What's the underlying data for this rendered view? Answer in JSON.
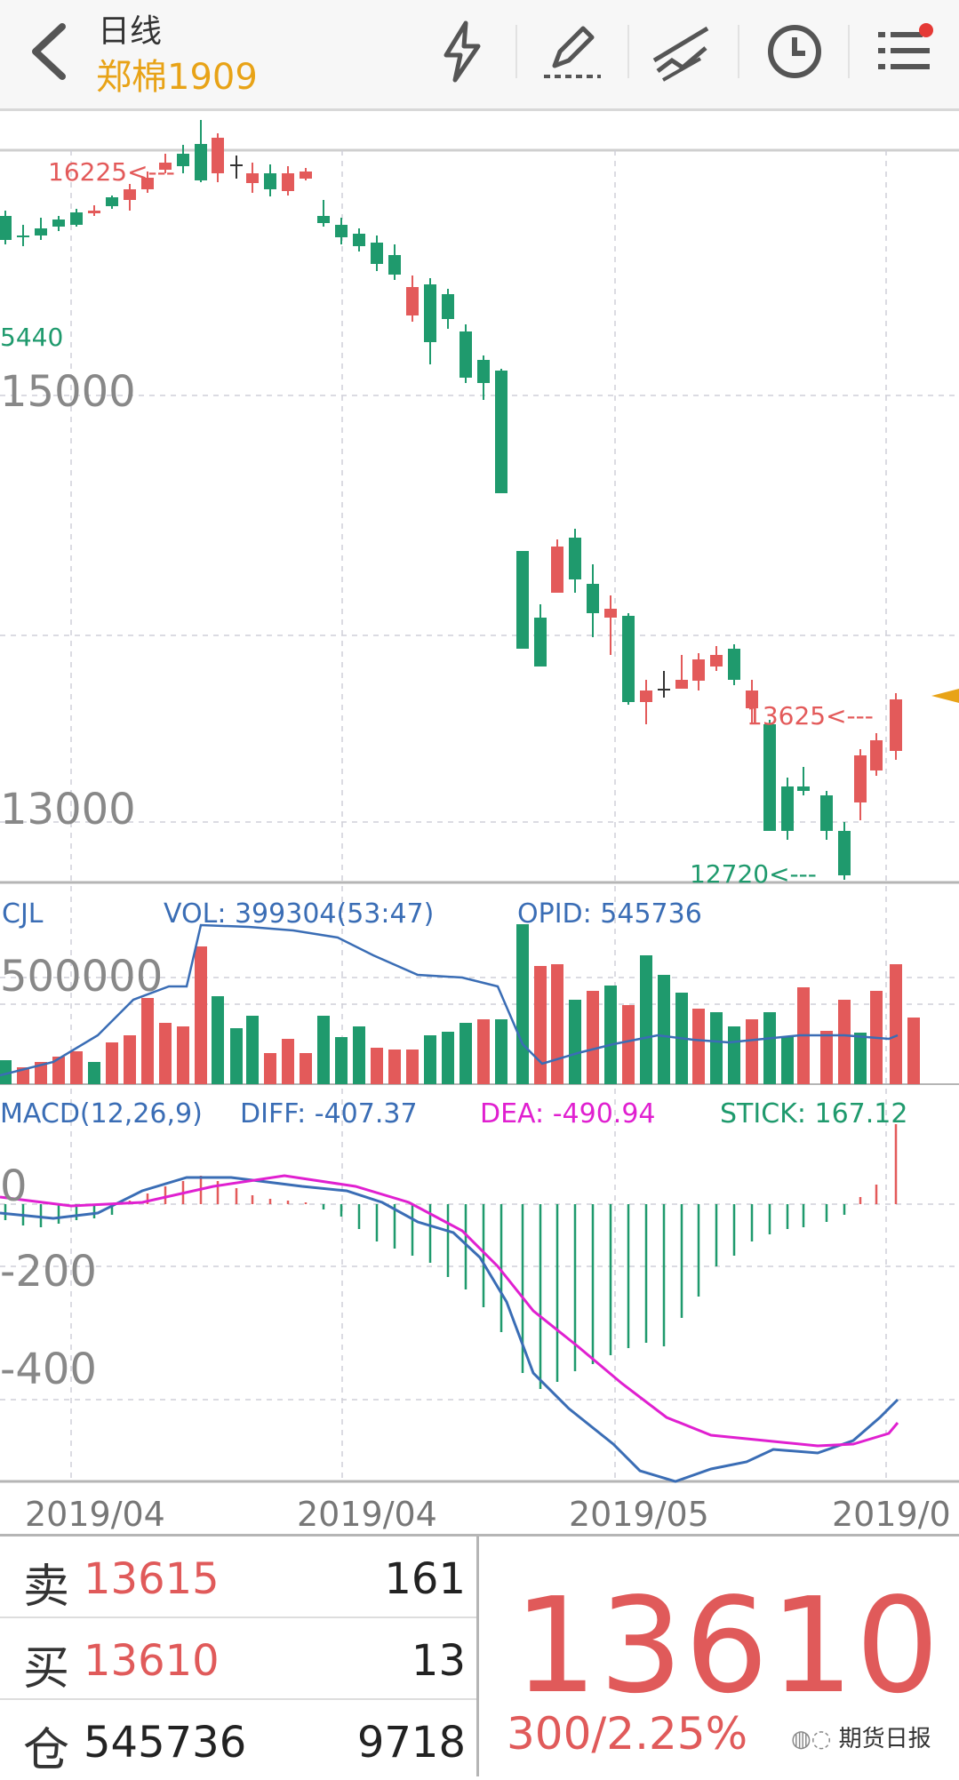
{
  "header": {
    "title": "日线",
    "symbol": "郑棉1909"
  },
  "chart_labels": {
    "high_marker": "16225<---",
    "low_left_marker": "5440",
    "y_15000": "15000",
    "y_13000": "13000",
    "recent_high_marker": "13625<---",
    "recent_low_marker": "12720<---",
    "cjl": "CJL",
    "vol": "VOL: 399304(53:47)",
    "opid": "OPID: 545736",
    "vol_axis": "500000",
    "macd": "MACD(12,26,9)",
    "diff": "DIFF: -407.37",
    "dea": "DEA: -490.94",
    "stick": "STICK: 167.12",
    "macd_0": "0",
    "macd_m200": "-200",
    "macd_m400": "-400",
    "date1": "2019/04",
    "date2": "2019/04",
    "date3": "2019/05",
    "date4": "2019/0"
  },
  "colors": {
    "up": "#e35a5a",
    "down": "#1f9a6d",
    "diff_line": "#3a6db5",
    "dea_line": "#e020d0",
    "accent": "#e8a317"
  },
  "quote": {
    "sell_label": "卖",
    "sell_price": "13615",
    "sell_qty": "161",
    "buy_label": "买",
    "buy_price": "13610",
    "buy_qty": "13",
    "oi_label": "仓",
    "oi_value": "545736",
    "oi_change": "9718",
    "last_price": "13610",
    "change": "300/2.25%",
    "watermark": "期货日报"
  }
}
